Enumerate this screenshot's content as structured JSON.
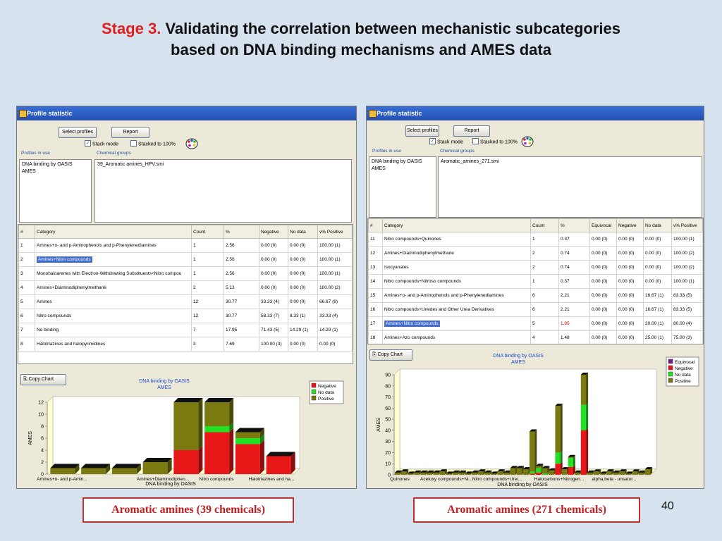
{
  "slide": {
    "title_prefix": "Stage 3.",
    "title_rest": " Validating the correlation between mechanistic subcategories",
    "title_line2": "based on DNA binding mechanisms and AMES data",
    "page_number": "40",
    "caption_left": "Aromatic amines (39 chemicals)",
    "caption_right": "Aromatic amines (271 chemicals)"
  },
  "left_window": {
    "title": "Profile statistic",
    "select_profiles": "Select profiles",
    "report": "Report",
    "stack_mode": "Stack mode",
    "stack_mode_checked": true,
    "stacked_100": "Stacked to 100%",
    "stacked_100_checked": false,
    "profiles_label": "Profiles in use",
    "profiles": [
      "DNA binding by OASIS",
      "AMES"
    ],
    "groups_label": "Chemical groups",
    "groups": [
      "39_Aromatic amines_HPV.smi"
    ],
    "columns": [
      "#",
      "Category",
      "Count",
      "%",
      "Negative",
      "No data",
      "v% Positive"
    ],
    "rows": [
      [
        "1",
        "Amines+o- and p-Aminophenols and p-Phenylenediamines",
        "1",
        "2.56",
        "0.00 (0)",
        "0.00 (0)",
        "100.00 (1)"
      ],
      [
        "2",
        "Amines+Nitro compounds",
        "1",
        "2.56",
        "0.00 (0)",
        "0.00 (0)",
        "100.00 (1)"
      ],
      [
        "3",
        "Monohaloarenes with Electron-Withdrawing Substituents+Nitro compou",
        "1",
        "2.56",
        "0.00 (0)",
        "0.00 (0)",
        "100.00 (1)"
      ],
      [
        "4",
        "Amines+Diaminodiphenylmethane",
        "2",
        "5.13",
        "0.00 (0)",
        "0.00 (0)",
        "100.00 (2)"
      ],
      [
        "5",
        "Amines",
        "12",
        "30.77",
        "33.33 (4)",
        "0.00 (0)",
        "66.67 (8)"
      ],
      [
        "6",
        "Nitro compounds",
        "12",
        "30.77",
        "58.33 (7)",
        "8.33 (1)",
        "33.33 (4)"
      ],
      [
        "7",
        "No binding",
        "7",
        "17.95",
        "71.43 (5)",
        "14.29 (1)",
        "14.29 (1)"
      ],
      [
        "8",
        "Halotriazines and halopyrimidines",
        "3",
        "7.69",
        "100.00 (3)",
        "0.00 (0)",
        "0.00 (0)"
      ]
    ],
    "selected_row": 1,
    "copy_chart": "Copy Chart"
  },
  "right_window": {
    "title": "Profile statistic",
    "select_profiles": "Select profiles",
    "report": "Report",
    "stack_mode": "Stack mode",
    "stack_mode_checked": true,
    "stacked_100": "Stacked to 100%",
    "stacked_100_checked": false,
    "profiles_label": "Profiles in use",
    "profiles": [
      "DNA binding by OASIS",
      "AMES"
    ],
    "groups_label": "Chemical groups",
    "groups": [
      "Aromatic_amines_271.smi"
    ],
    "columns": [
      "#",
      "Category",
      "Count",
      "%",
      "Equivocal",
      "Negative",
      "No data",
      "v% Positive"
    ],
    "rows": [
      [
        "11",
        "Nitro compounds+Quinones",
        "1",
        "0.37",
        "0.00 (0)",
        "0.00 (0)",
        "0.00 (0)",
        "100.00 (1)"
      ],
      [
        "12",
        "Amines+Diaminodiphenylmethane",
        "2",
        "0.74",
        "0.00 (0)",
        "0.00 (0)",
        "0.00 (0)",
        "100.00 (2)"
      ],
      [
        "13",
        "Isocyanates",
        "2",
        "0.74",
        "0.00 (0)",
        "0.00 (0)",
        "0.00 (0)",
        "100.00 (2)"
      ],
      [
        "14",
        "Nitro compounds+Nitroso compounds",
        "1",
        "0.37",
        "0.00 (0)",
        "0.00 (0)",
        "0.00 (0)",
        "100.00 (1)"
      ],
      [
        "15",
        "Amines+o- and p-Aminophenols and p-Phenylenediamines",
        "6",
        "2.21",
        "0.00 (0)",
        "0.00 (0)",
        "16.67 (1)",
        "83.33 (5)"
      ],
      [
        "16",
        "Nitro compounds+Ureides and Other Urea Derivatives",
        "6",
        "2.21",
        "0.00 (0)",
        "0.00 (0)",
        "16.67 (1)",
        "83.33 (5)"
      ],
      [
        "17",
        "Amines+Nitro compounds",
        "5",
        "1.85",
        "0.00 (0)",
        "0.00 (0)",
        "20.00 (1)",
        "80.00 (4)"
      ],
      [
        "18",
        "Amines+Azo compounds",
        "4",
        "1.48",
        "0.00 (0)",
        "0.00 (0)",
        "25.00 (1)",
        "75.00 (3)"
      ]
    ],
    "selected_row": 6,
    "copy_chart": "Copy Chart"
  },
  "colors": {
    "negative": "#e81818",
    "no_data": "#22e022",
    "positive": "#7a7a10",
    "equivocal": "#7a1a8a",
    "accent_red": "#e02020"
  },
  "chart_data": [
    {
      "type": "bar",
      "title": "DNA binding by OASIS",
      "subtitle": "AMES",
      "xlabel": "DNA binding by OASIS",
      "ylabel": "AMES",
      "ylim": [
        0,
        12
      ],
      "yticks": [
        0,
        2,
        4,
        6,
        8,
        10,
        12
      ],
      "stacked": true,
      "legend_position": "top-right",
      "categories": [
        "Amines+o- and p-Amin...",
        "",
        "",
        "Amines+Diaminodiphen...",
        "",
        "Nitro compounds",
        "",
        "Halotriazines and ha..."
      ],
      "tick_labels": [
        "Amines+o- and p-Amin...",
        "Amines+Diaminodiphen...",
        "Nitro compounds",
        "Halotriazines and ha..."
      ],
      "series": [
        {
          "name": "Negative",
          "values": [
            0,
            0,
            0,
            0,
            4,
            7,
            5,
            3
          ]
        },
        {
          "name": "No data",
          "values": [
            0,
            0,
            0,
            0,
            0,
            1,
            1,
            0
          ]
        },
        {
          "name": "Positive",
          "values": [
            1,
            1,
            1,
            2,
            8,
            4,
            1,
            0
          ]
        }
      ]
    },
    {
      "type": "bar",
      "title": "DNA binding by OASIS",
      "subtitle": "AMES",
      "xlabel": "DNA binding by OASIS",
      "ylabel": "AMES",
      "ylim": [
        0,
        90
      ],
      "yticks": [
        0,
        10,
        20,
        30,
        40,
        50,
        60,
        70,
        80,
        90
      ],
      "stacked": true,
      "legend_position": "top-right",
      "tick_labels": [
        "Quinones",
        "Acetoxy compounds+Ni...",
        "Nitro compounds+Urei...",
        "Halocarbons+Nitrogen...",
        "alpha,beta - unsatur..."
      ],
      "series": [
        {
          "name": "Equivocal",
          "values": [
            0,
            0,
            0,
            0,
            0,
            0,
            0,
            0,
            0,
            0,
            0,
            0,
            0,
            0,
            0,
            0,
            0,
            0,
            0,
            0,
            0,
            0,
            0,
            0,
            0,
            0,
            0,
            0,
            0,
            0,
            0,
            0,
            0,
            0,
            0,
            0,
            0,
            0,
            0,
            0
          ]
        },
        {
          "name": "Negative",
          "values": [
            0,
            0,
            0,
            0,
            0,
            0,
            0,
            0,
            0,
            0,
            0,
            0,
            0,
            0,
            0,
            0,
            0,
            0,
            0,
            0,
            0,
            1,
            2,
            0,
            0,
            10,
            0,
            7,
            0,
            40,
            0,
            0,
            0,
            0,
            0,
            0,
            0,
            0,
            0,
            0
          ]
        },
        {
          "name": "No data",
          "values": [
            0,
            0,
            0,
            0,
            0,
            0,
            0,
            0,
            0,
            0,
            0,
            0,
            0,
            0,
            0,
            0,
            0,
            0,
            0,
            0,
            0,
            2,
            4,
            1,
            0,
            10,
            0,
            8,
            0,
            23,
            0,
            0,
            0,
            0,
            0,
            0,
            0,
            0,
            0,
            0
          ]
        },
        {
          "name": "Positive",
          "values": [
            2,
            3,
            1,
            2,
            2,
            2,
            2,
            3,
            1,
            2,
            2,
            1,
            2,
            3,
            2,
            1,
            3,
            2,
            6,
            6,
            5,
            36,
            2,
            5,
            4,
            42,
            5,
            1,
            2,
            27,
            2,
            3,
            1,
            3,
            2,
            3,
            1,
            3,
            2,
            5
          ]
        }
      ]
    }
  ]
}
